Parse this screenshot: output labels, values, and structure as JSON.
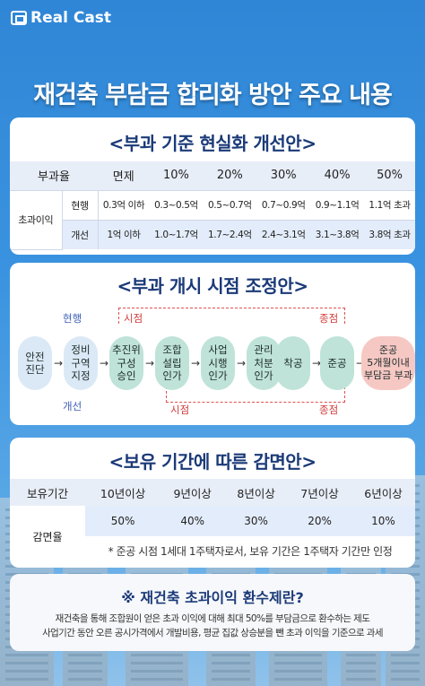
{
  "brand": {
    "name": "Real Cast"
  },
  "title": "재건축 부담금 합리화 방안 주요 내용",
  "section1": {
    "title": "<부과 기준 현실화 개선안>",
    "headers": [
      "부과율",
      "면제",
      "10%",
      "20%",
      "30%",
      "40%",
      "50%"
    ],
    "row_group": "초과이익",
    "rows": [
      {
        "label": "현행",
        "values": [
          "0.3억 이하",
          "0.3~0.5억",
          "0.5~0.7억",
          "0.7~0.9억",
          "0.9~1.1억",
          "1.1억 초과"
        ]
      },
      {
        "label": "개선",
        "values": [
          "1억 이하",
          "1.0~1.7억",
          "1.7~2.4억",
          "2.4~3.1억",
          "3.1~3.8억",
          "3.8억 초과"
        ]
      }
    ]
  },
  "section2": {
    "title": "<부과 개시 시점 조정안>",
    "current_label": "현행",
    "improve_label": "개선",
    "start_label_top": "시점",
    "end_label_top": "종점",
    "start_label_bottom": "시점",
    "end_label_bottom": "종점",
    "steps": [
      "안전\n진단",
      "정비\n구역\n지정",
      "추진위\n구성\n승인",
      "조합\n설립\n인가",
      "사업\n시행\n인가",
      "관리\n처분\n인가",
      "착공",
      "준공",
      "준공\n5개월이내\n부담금 부과"
    ]
  },
  "section3": {
    "title": "<보유 기간에 따른 감면안>",
    "header_label": "보유기간",
    "periods": [
      "10년이상",
      "9년이상",
      "8년이상",
      "7년이상",
      "6년이상"
    ],
    "row_label": "감면율",
    "rates": [
      "50%",
      "40%",
      "30%",
      "20%",
      "10%"
    ],
    "note": "* 준공 시점 1세대 1주택자로서, 보유 기간은 1주택자 기간만 인정"
  },
  "section4": {
    "title": "※ 재건축 초과이익 환수제란?",
    "body_line1": "재건축을 통해 조합원이 얻은 초과 이익에 대해 최대 50%를 부담금으로 환수하는 제도",
    "body_line2": "사업기간 동안 오른 공시가격에서 개발비용, 평균 집값 상승분을 뺀 초과 이익을 기준으로 과세"
  }
}
